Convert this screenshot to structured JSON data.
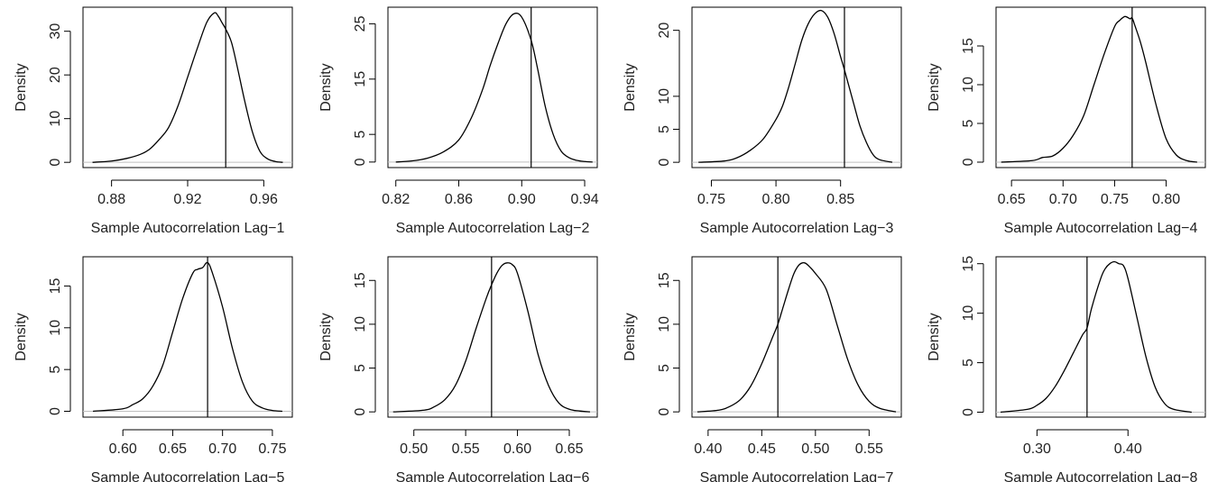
{
  "figure": {
    "ylabel": "Density",
    "colors": {
      "curve": "#000000",
      "baseline": "#bfbfbf",
      "marker": "#000000",
      "frame": "#000000",
      "text": "#222222"
    }
  },
  "chart_data": [
    {
      "type": "line",
      "xlabel": "Sample Autocorrelation Lag−1",
      "ylabel": "Density",
      "xlim": [
        0.865,
        0.975
      ],
      "ylim": [
        -1.2,
        35.5
      ],
      "xticks": [
        0.88,
        0.92,
        0.96
      ],
      "xtick_labels": [
        "0.88",
        "0.92",
        "0.96"
      ],
      "yticks": [
        0,
        10,
        20,
        30
      ],
      "vline": 0.94,
      "grid": false,
      "series": [
        {
          "x": [
            0.87,
            0.88,
            0.888,
            0.895,
            0.9,
            0.905,
            0.91,
            0.915,
            0.92,
            0.925,
            0.93,
            0.934,
            0.936,
            0.938,
            0.94,
            0.943,
            0.946,
            0.95,
            0.954,
            0.958,
            0.962,
            0.966,
            0.97
          ],
          "y": [
            0.0,
            0.3,
            0.9,
            1.8,
            3.0,
            5.2,
            8.0,
            13.0,
            19.5,
            26.0,
            32.0,
            34.2,
            33.5,
            32.0,
            30.5,
            27.5,
            22.0,
            14.0,
            7.0,
            2.5,
            0.8,
            0.2,
            0.0
          ]
        }
      ]
    },
    {
      "type": "line",
      "xlabel": "Sample Autocorrelation Lag−2",
      "ylabel": "Density",
      "xlim": [
        0.815,
        0.948
      ],
      "ylim": [
        -1.0,
        28.0
      ],
      "xticks": [
        0.82,
        0.86,
        0.9,
        0.94
      ],
      "xtick_labels": [
        "0.82",
        "0.86",
        "0.90",
        "0.94"
      ],
      "yticks": [
        0,
        5,
        15,
        25
      ],
      "vline": 0.906,
      "grid": false,
      "series": [
        {
          "x": [
            0.82,
            0.83,
            0.84,
            0.85,
            0.86,
            0.868,
            0.875,
            0.88,
            0.885,
            0.89,
            0.895,
            0.9,
            0.906,
            0.91,
            0.915,
            0.92,
            0.925,
            0.93,
            0.935,
            0.94,
            0.945
          ],
          "y": [
            0.0,
            0.2,
            0.7,
            1.8,
            4.0,
            8.0,
            13.0,
            17.5,
            21.5,
            25.0,
            26.8,
            26.2,
            22.0,
            17.0,
            10.0,
            5.0,
            2.0,
            0.8,
            0.3,
            0.1,
            0.0
          ]
        }
      ]
    },
    {
      "type": "line",
      "xlabel": "Sample Autocorrelation Lag−3",
      "ylabel": "Density",
      "xlim": [
        0.735,
        0.897
      ],
      "ylim": [
        -0.8,
        23.5
      ],
      "xticks": [
        0.75,
        0.8,
        0.85
      ],
      "xtick_labels": [
        "0.75",
        "0.80",
        "0.85"
      ],
      "yticks": [
        0,
        5,
        10,
        20
      ],
      "vline": 0.853,
      "grid": false,
      "series": [
        {
          "x": [
            0.74,
            0.76,
            0.77,
            0.78,
            0.79,
            0.8,
            0.805,
            0.81,
            0.815,
            0.82,
            0.825,
            0.83,
            0.835,
            0.84,
            0.845,
            0.85,
            0.853,
            0.86,
            0.865,
            0.87,
            0.875,
            0.88,
            0.89
          ],
          "y": [
            0.0,
            0.2,
            0.7,
            1.8,
            3.5,
            6.5,
            8.5,
            11.5,
            15.0,
            18.5,
            21.0,
            22.5,
            23.0,
            22.0,
            19.5,
            16.0,
            14.0,
            9.0,
            5.5,
            3.0,
            1.2,
            0.4,
            0.0
          ]
        }
      ]
    },
    {
      "type": "line",
      "xlabel": "Sample Autocorrelation Lag−4",
      "ylabel": "Density",
      "xlim": [
        0.635,
        0.838
      ],
      "ylim": [
        -0.7,
        20.0
      ],
      "xticks": [
        0.65,
        0.7,
        0.75,
        0.8
      ],
      "xtick_labels": [
        "0.65",
        "0.70",
        "0.75",
        "0.80"
      ],
      "yticks": [
        0,
        5,
        10,
        15
      ],
      "vline": 0.767,
      "grid": false,
      "series": [
        {
          "x": [
            0.64,
            0.67,
            0.68,
            0.69,
            0.7,
            0.71,
            0.72,
            0.73,
            0.74,
            0.75,
            0.755,
            0.76,
            0.765,
            0.767,
            0.77,
            0.775,
            0.78,
            0.79,
            0.8,
            0.81,
            0.82,
            0.83
          ],
          "y": [
            0.0,
            0.2,
            0.6,
            0.8,
            1.8,
            3.5,
            6.0,
            10.0,
            14.0,
            17.5,
            18.3,
            18.8,
            18.5,
            18.6,
            17.5,
            15.5,
            13.0,
            7.5,
            3.0,
            0.9,
            0.2,
            0.0
          ]
        }
      ]
    },
    {
      "type": "line",
      "xlabel": "Sample Autocorrelation Lag−5",
      "ylabel": "Density",
      "xlim": [
        0.56,
        0.77
      ],
      "ylim": [
        -0.7,
        18.5
      ],
      "xticks": [
        0.6,
        0.65,
        0.7,
        0.75
      ],
      "xtick_labels": [
        "0.60",
        "0.65",
        "0.70",
        "0.75"
      ],
      "yticks": [
        0,
        5,
        10,
        15
      ],
      "vline": 0.685,
      "grid": false,
      "series": [
        {
          "x": [
            0.57,
            0.6,
            0.61,
            0.62,
            0.63,
            0.64,
            0.65,
            0.66,
            0.67,
            0.675,
            0.68,
            0.685,
            0.69,
            0.7,
            0.71,
            0.72,
            0.73,
            0.74,
            0.75,
            0.76
          ],
          "y": [
            0.0,
            0.3,
            0.8,
            1.5,
            3.0,
            5.5,
            9.5,
            13.5,
            16.5,
            17.0,
            17.2,
            17.8,
            16.5,
            12.5,
            7.5,
            3.5,
            1.2,
            0.4,
            0.1,
            0.0
          ]
        }
      ]
    },
    {
      "type": "line",
      "xlabel": "Sample Autocorrelation Lag−6",
      "ylabel": "Density",
      "xlim": [
        0.475,
        0.677
      ],
      "ylim": [
        -0.6,
        17.7
      ],
      "xticks": [
        0.5,
        0.55,
        0.6,
        0.65
      ],
      "xtick_labels": [
        "0.50",
        "0.55",
        "0.60",
        "0.65"
      ],
      "yticks": [
        0,
        5,
        10,
        15
      ],
      "vline": 0.575,
      "grid": false,
      "series": [
        {
          "x": [
            0.48,
            0.51,
            0.52,
            0.53,
            0.54,
            0.55,
            0.56,
            0.57,
            0.575,
            0.58,
            0.585,
            0.59,
            0.595,
            0.6,
            0.61,
            0.62,
            0.63,
            0.64,
            0.65,
            0.66,
            0.67
          ],
          "y": [
            0.0,
            0.2,
            0.6,
            1.4,
            3.0,
            5.8,
            9.5,
            13.0,
            14.5,
            15.8,
            16.7,
            17.0,
            16.8,
            15.8,
            11.5,
            6.5,
            3.0,
            1.0,
            0.3,
            0.1,
            0.0
          ]
        }
      ]
    },
    {
      "type": "line",
      "xlabel": "Sample Autocorrelation Lag−7",
      "ylabel": "Density",
      "xlim": [
        0.385,
        0.58
      ],
      "ylim": [
        -0.6,
        17.7
      ],
      "xticks": [
        0.4,
        0.45,
        0.5,
        0.55
      ],
      "xtick_labels": [
        "0.40",
        "0.45",
        "0.50",
        "0.55"
      ],
      "yticks": [
        0,
        5,
        10,
        15
      ],
      "vline": 0.465,
      "grid": false,
      "series": [
        {
          "x": [
            0.39,
            0.41,
            0.42,
            0.43,
            0.44,
            0.45,
            0.46,
            0.465,
            0.47,
            0.475,
            0.48,
            0.485,
            0.49,
            0.495,
            0.5,
            0.51,
            0.52,
            0.53,
            0.54,
            0.55,
            0.56,
            0.575
          ],
          "y": [
            0.0,
            0.2,
            0.6,
            1.4,
            3.0,
            5.5,
            8.5,
            10.0,
            12.0,
            14.0,
            15.8,
            16.8,
            17.0,
            16.5,
            15.8,
            14.0,
            10.0,
            6.0,
            3.0,
            1.2,
            0.4,
            0.0
          ]
        }
      ]
    },
    {
      "type": "line",
      "xlabel": "Sample Autocorrelation Lag−8",
      "ylabel": "Density",
      "xlim": [
        0.255,
        0.485
      ],
      "ylim": [
        -0.5,
        15.7
      ],
      "xticks": [
        0.3,
        0.4
      ],
      "xtick_labels": [
        "0.30",
        "0.40"
      ],
      "yticks": [
        0,
        5,
        10,
        15
      ],
      "vline": 0.355,
      "grid": false,
      "series": [
        {
          "x": [
            0.26,
            0.29,
            0.3,
            0.31,
            0.32,
            0.33,
            0.34,
            0.35,
            0.355,
            0.36,
            0.37,
            0.375,
            0.38,
            0.385,
            0.39,
            0.395,
            0.4,
            0.41,
            0.42,
            0.43,
            0.44,
            0.45,
            0.47
          ],
          "y": [
            0.0,
            0.3,
            0.7,
            1.4,
            2.6,
            4.2,
            6.0,
            7.8,
            8.5,
            10.5,
            13.5,
            14.5,
            15.0,
            15.2,
            15.0,
            14.8,
            13.5,
            9.5,
            5.5,
            2.5,
            0.9,
            0.3,
            0.0
          ]
        }
      ]
    }
  ]
}
